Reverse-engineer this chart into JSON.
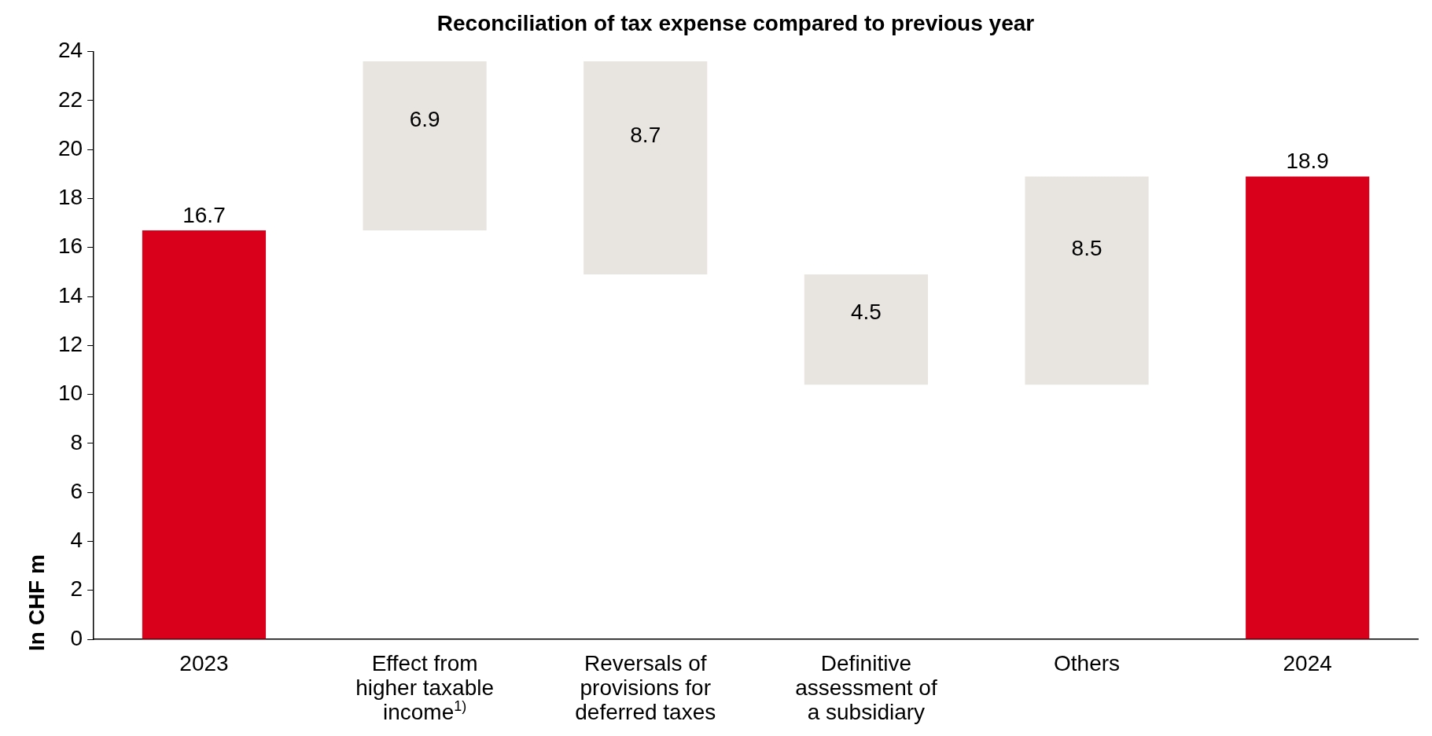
{
  "chart_data": {
    "type": "bar",
    "title": "Reconciliation of tax expense compared to previous year",
    "ylabel": "In CHF m",
    "categories": [
      "2023",
      "Effect from higher taxable income$^{1)}$",
      "Reversals of provisions for deferred taxes",
      "Definitive assessment of a subsidiary",
      "Others",
      "2024"
    ],
    "values": [
      16.7,
      6.9,
      8.7,
      4.5,
      8.5,
      18.9
    ],
    "base": [
      0,
      16.7,
      14.9,
      10.4,
      10.4,
      0
    ],
    "colors": [
      "#d9001b",
      "#e8e5e0",
      "#e8e5e0",
      "#e8e5e0",
      "#e8e5e0",
      "#d9001b"
    ],
    "ylim": [
      0,
      24
    ],
    "yticks": [
      0,
      2,
      4,
      6,
      8,
      10,
      12,
      14,
      16,
      18,
      20,
      22,
      24
    ],
    "data_labels": true,
    "grid": false,
    "legend": false
  }
}
